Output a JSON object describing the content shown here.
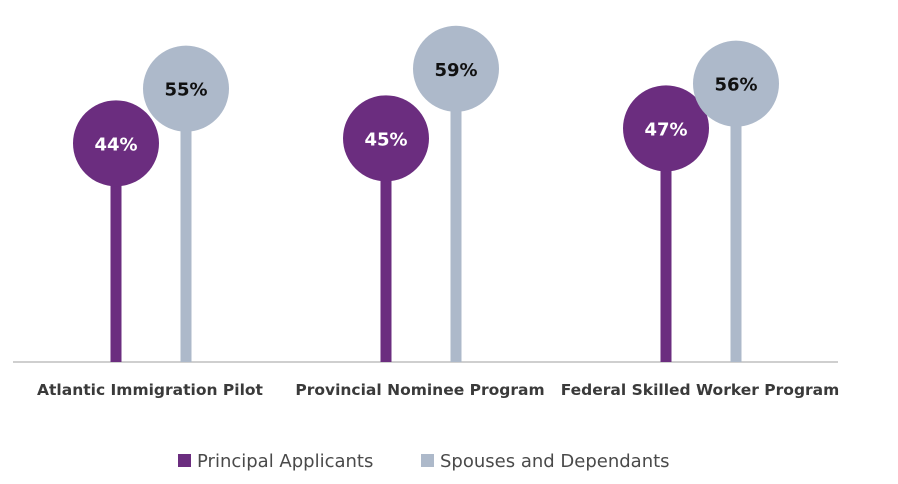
{
  "chart_data": {
    "type": "bar",
    "subtype": "lollipop",
    "categories": [
      "Atlantic Immigration Pilot",
      "Provincial Nominee Program",
      "Federal Skilled Worker Program"
    ],
    "series": [
      {
        "name": "Principal Applicants",
        "values": [
          44,
          45,
          47
        ],
        "labels": [
          "44%",
          "45%",
          "47%"
        ]
      },
      {
        "name": "Spouses and Dependants",
        "values": [
          55,
          59,
          56
        ],
        "labels": [
          "55%",
          "59%",
          "56%"
        ]
      }
    ],
    "unit": "%",
    "ylim": [
      0,
      70
    ],
    "grid": false,
    "legend_position": "bottom-center",
    "colors": {
      "series": [
        "#6b2d7f",
        "#adb9ca"
      ],
      "series_label_text": [
        "#ffffff",
        "#111111"
      ],
      "axis": "#bfbfbf"
    },
    "title": "",
    "xlabel": "",
    "ylabel": ""
  }
}
